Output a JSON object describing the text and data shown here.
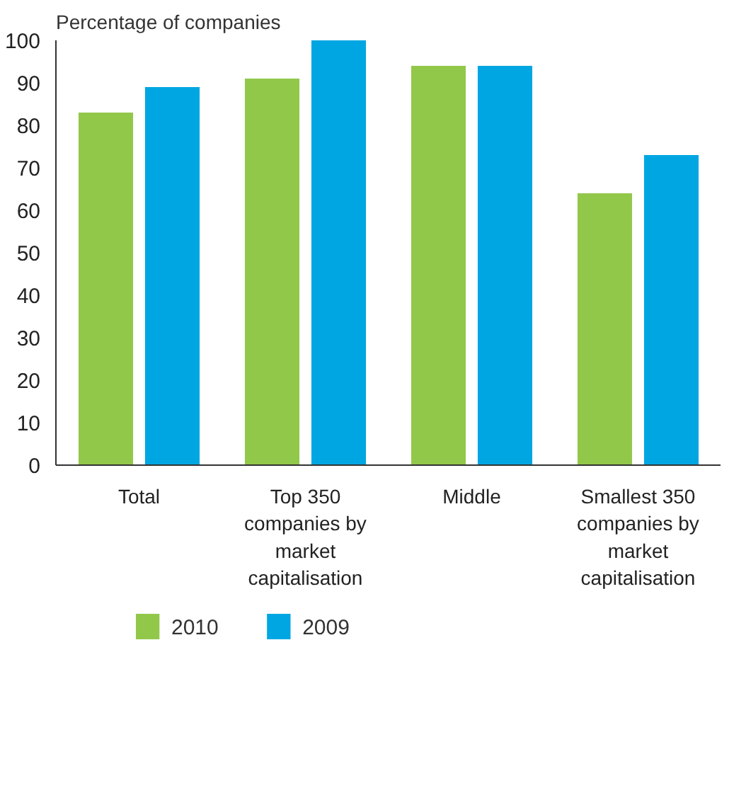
{
  "chart_data": {
    "type": "bar",
    "ylabel": "Percentage of companies",
    "categories": [
      "Total",
      "Top 350 companies by market capitalisation",
      "Middle",
      "Smallest 350 companies by market capitalisation"
    ],
    "series": [
      {
        "name": "2010",
        "color": "#92c84a",
        "values": [
          83,
          91,
          94,
          64
        ]
      },
      {
        "name": "2009",
        "color": "#00a6e2",
        "values": [
          89,
          100,
          94,
          73
        ]
      }
    ],
    "ylim": [
      0,
      100
    ],
    "yticks": [
      0,
      10,
      20,
      30,
      40,
      50,
      60,
      70,
      80,
      90,
      100
    ],
    "grid": false,
    "legend": "bottom left"
  }
}
